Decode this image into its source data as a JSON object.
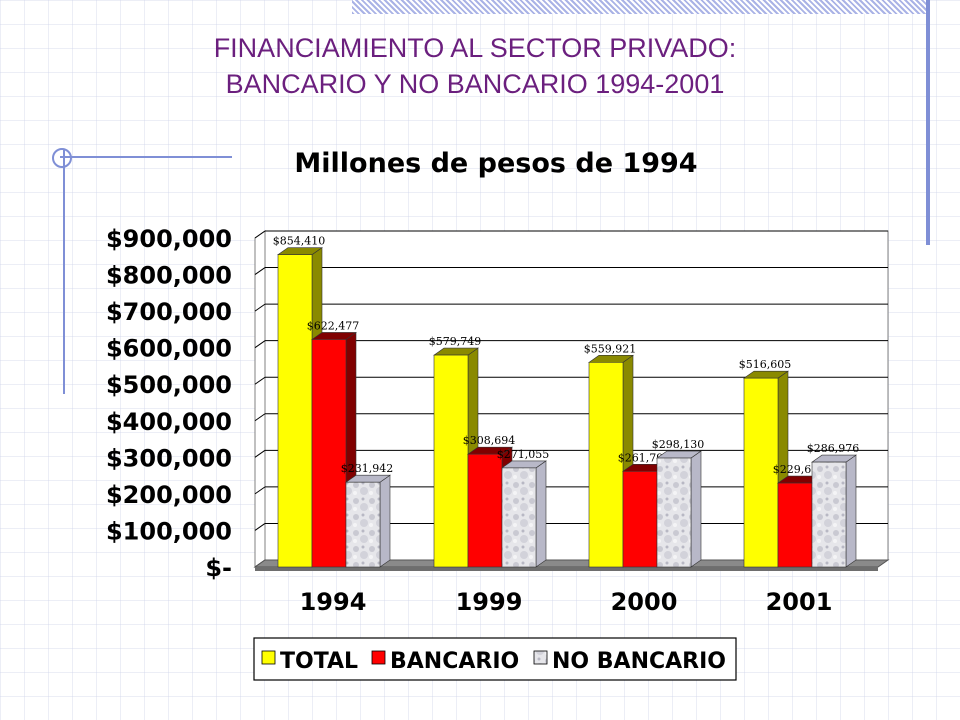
{
  "slide": {
    "title_line1": "FINANCIAMIENTO AL SECTOR PRIVADO:",
    "title_line2": "BANCARIO Y NO BANCARIO 1994-2001"
  },
  "chart_data": {
    "type": "bar",
    "title": "Millones de pesos de 1994",
    "categories": [
      "1994",
      "1999",
      "2000",
      "2001"
    ],
    "series": [
      {
        "name": "TOTAL",
        "values": [
          854410,
          579749,
          559921,
          516605
        ],
        "labels": [
          "$854,410",
          "$579,749",
          "$559,921",
          "$516,605"
        ],
        "color": "#ffff00",
        "side": "#8a8a00"
      },
      {
        "name": "BANCARIO",
        "values": [
          622477,
          308694,
          261791,
          229630
        ],
        "labels": [
          "$622,477",
          "$308,694",
          "$261,791",
          "$229,630"
        ],
        "color": "#ff0000",
        "side": "#800000"
      },
      {
        "name": "NO BANCARIO",
        "values": [
          231942,
          271055,
          298130,
          286976
        ],
        "labels": [
          "$231,942",
          "$271,055",
          "$298,130",
          "$286,976"
        ],
        "color": "#dcdcdc",
        "side": "#b8b8c8"
      }
    ],
    "yticks": [
      0,
      100000,
      200000,
      300000,
      400000,
      500000,
      600000,
      700000,
      800000,
      900000
    ],
    "ytick_labels": [
      "$-",
      "$100,000",
      "$200,000",
      "$300,000",
      "$400,000",
      "$500,000",
      "$600,000",
      "$700,000",
      "$800,000",
      "$900,000"
    ],
    "ylim": [
      0,
      900000
    ],
    "grid": true,
    "legend_position": "bottom"
  }
}
